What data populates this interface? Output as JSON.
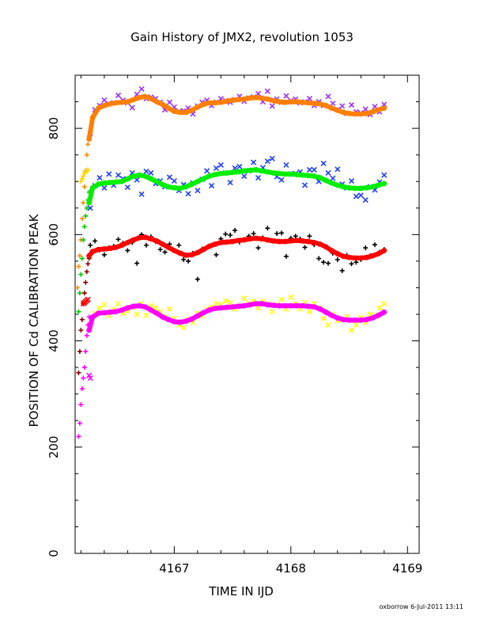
{
  "chart_data": {
    "type": "scatter",
    "title": "Gain History of JMX2, revolution 1053",
    "xlabel": "TIME IN IJD",
    "ylabel": "POSITION OF Cd CALIBRATION PEAK",
    "xlim": [
      4166.15,
      4169.1
    ],
    "ylim": [
      0,
      900
    ],
    "xticks": [
      4167,
      4168,
      4169
    ],
    "xtick_labels": [
      "4167",
      "4168",
      "4169"
    ],
    "yticks": [
      0,
      200,
      400,
      600,
      800
    ],
    "ytick_labels": [
      "0",
      "200",
      "400",
      "600",
      "800"
    ],
    "grid": false,
    "legend": "none",
    "footer": "oxborrow  6-Jul-2011 13:11",
    "series": [
      {
        "marker": "x",
        "color": "#9b30ff",
        "x": [
          4166.28,
          4166.32,
          4166.36,
          4166.4,
          4166.44,
          4166.48,
          4166.52,
          4166.56,
          4166.6,
          4166.64,
          4166.68,
          4166.72,
          4166.76,
          4166.8,
          4166.84,
          4166.88,
          4166.92,
          4166.96,
          4167.0,
          4167.04,
          4167.08,
          4167.12,
          4167.16,
          4167.2,
          4167.24,
          4167.28,
          4167.32,
          4167.36,
          4167.4,
          4167.44,
          4167.48,
          4167.52,
          4167.56,
          4167.6,
          4167.64,
          4167.68,
          4167.72,
          4167.76,
          4167.8,
          4167.84,
          4167.88,
          4167.92,
          4167.96,
          4168.0,
          4168.04,
          4168.08,
          4168.12,
          4168.16,
          4168.2,
          4168.24,
          4168.28,
          4168.32,
          4168.36,
          4168.4,
          4168.44,
          4168.48,
          4168.52,
          4168.56,
          4168.6,
          4168.64,
          4168.68,
          4168.72,
          4168.76,
          4168.8
        ],
        "y": [
          790,
          835,
          843,
          853,
          846,
          848,
          862,
          853,
          848,
          839,
          864,
          874,
          856,
          859,
          856,
          849,
          835,
          849,
          840,
          832,
          833,
          838,
          827,
          842,
          849,
          853,
          843,
          849,
          856,
          852,
          849,
          854,
          860,
          851,
          857,
          859,
          865,
          850,
          870,
          842,
          855,
          849,
          861,
          852,
          855,
          848,
          850,
          856,
          843,
          850,
          843,
          860,
          847,
          835,
          842,
          828,
          844,
          831,
          829,
          836,
          826,
          841,
          831,
          845
        ]
      },
      {
        "marker": "+",
        "color": "#ff8c00",
        "x": [
          4166.17,
          4166.18,
          4166.19,
          4166.2,
          4166.21,
          4166.22,
          4166.23,
          4166.24,
          4166.25,
          4166.26,
          4166.27
        ],
        "y": [
          500,
          540,
          560,
          590,
          630,
          660,
          690,
          720,
          750,
          770,
          785
        ]
      },
      {
        "marker": "x",
        "color": "#1f3fff",
        "x": [
          4166.28,
          4166.32,
          4166.36,
          4166.4,
          4166.44,
          4166.48,
          4166.52,
          4166.56,
          4166.6,
          4166.64,
          4166.68,
          4166.72,
          4166.76,
          4166.8,
          4166.84,
          4166.88,
          4166.92,
          4166.96,
          4167.0,
          4167.04,
          4167.08,
          4167.12,
          4167.16,
          4167.2,
          4167.24,
          4167.28,
          4167.32,
          4167.36,
          4167.4,
          4167.44,
          4167.48,
          4167.52,
          4167.56,
          4167.6,
          4167.64,
          4167.68,
          4167.72,
          4167.76,
          4167.8,
          4167.84,
          4167.88,
          4167.92,
          4167.96,
          4168.0,
          4168.04,
          4168.08,
          4168.12,
          4168.16,
          4168.2,
          4168.24,
          4168.28,
          4168.32,
          4168.36,
          4168.4,
          4168.44,
          4168.48,
          4168.52,
          4168.56,
          4168.6,
          4168.64,
          4168.68,
          4168.72,
          4168.76,
          4168.8
        ],
        "y": [
          650,
          692,
          707,
          688,
          714,
          693,
          712,
          705,
          689,
          716,
          703,
          676,
          719,
          716,
          696,
          701,
          690,
          708,
          701,
          683,
          694,
          677,
          697,
          683,
          704,
          720,
          692,
          725,
          731,
          716,
          698,
          725,
          728,
          710,
          720,
          736,
          707,
          726,
          738,
          743,
          709,
          703,
          731,
          714,
          715,
          718,
          693,
          722,
          722,
          700,
          734,
          716,
          706,
          723,
          695,
          688,
          701,
          672,
          674,
          665,
          690,
          684,
          699,
          712
        ]
      },
      {
        "marker": "+",
        "color": "#ffd700",
        "x": [
          4166.2,
          4166.21,
          4166.22,
          4166.23,
          4166.24,
          4166.25,
          4166.26
        ],
        "y": [
          700,
          705,
          710,
          715,
          718,
          720,
          722
        ]
      },
      {
        "marker": "+",
        "color": "#000000",
        "x": [
          4166.28,
          4166.32,
          4166.36,
          4166.4,
          4166.44,
          4166.48,
          4166.52,
          4166.56,
          4166.6,
          4166.64,
          4166.68,
          4166.72,
          4166.76,
          4166.8,
          4166.84,
          4166.88,
          4166.92,
          4166.96,
          4167.0,
          4167.04,
          4167.08,
          4167.12,
          4167.16,
          4167.2,
          4167.24,
          4167.28,
          4167.32,
          4167.36,
          4167.4,
          4167.44,
          4167.48,
          4167.52,
          4167.56,
          4167.6,
          4167.64,
          4167.68,
          4167.72,
          4167.76,
          4167.8,
          4167.84,
          4167.88,
          4167.92,
          4167.96,
          4168.0,
          4168.04,
          4168.08,
          4168.12,
          4168.16,
          4168.2,
          4168.24,
          4168.28,
          4168.32,
          4168.36,
          4168.4,
          4168.44,
          4168.48,
          4168.52,
          4168.56,
          4168.6,
          4168.64,
          4168.68,
          4168.72,
          4168.76,
          4168.8
        ],
        "y": [
          580,
          588,
          571,
          562,
          575,
          578,
          591,
          584,
          570,
          585,
          546,
          600,
          580,
          596,
          587,
          572,
          567,
          582,
          570,
          580,
          553,
          550,
          565,
          516,
          573,
          576,
          580,
          562,
          592,
          601,
          599,
          608,
          586,
          591,
          597,
          602,
          575,
          594,
          612,
          588,
          602,
          603,
          559,
          593,
          597,
          592,
          576,
          597,
          581,
          555,
          548,
          546,
          565,
          553,
          532,
          561,
          545,
          548,
          553,
          575,
          560,
          581,
          567,
          572
        ]
      },
      {
        "marker": "+",
        "color": "#8b0000",
        "x": [
          4166.18,
          4166.19,
          4166.2,
          4166.21,
          4166.22,
          4166.23,
          4166.24,
          4166.25,
          4166.26,
          4166.27
        ],
        "y": [
          340,
          380,
          420,
          440,
          470,
          490,
          510,
          530,
          545,
          555
        ]
      },
      {
        "marker": "x",
        "color": "#ffff00",
        "x": [
          4166.28,
          4166.32,
          4166.36,
          4166.4,
          4166.44,
          4166.48,
          4166.52,
          4166.56,
          4166.6,
          4166.64,
          4166.68,
          4166.72,
          4166.76,
          4166.8,
          4166.84,
          4166.88,
          4166.92,
          4166.96,
          4167.0,
          4167.04,
          4167.08,
          4167.12,
          4167.16,
          4167.2,
          4167.24,
          4167.28,
          4167.32,
          4167.36,
          4167.4,
          4167.44,
          4167.48,
          4167.52,
          4167.56,
          4167.6,
          4167.64,
          4167.68,
          4167.72,
          4167.76,
          4167.8,
          4167.84,
          4167.88,
          4167.92,
          4167.96,
          4168.0,
          4168.04,
          4168.08,
          4168.12,
          4168.16,
          4168.2,
          4168.24,
          4168.28,
          4168.32,
          4168.36,
          4168.4,
          4168.44,
          4168.48,
          4168.52,
          4168.56,
          4168.6,
          4168.64,
          4168.68,
          4168.72,
          4168.76,
          4168.8
        ],
        "y": [
          430,
          452,
          462,
          468,
          448,
          459,
          470,
          452,
          456,
          463,
          450,
          470,
          448,
          466,
          462,
          455,
          445,
          460,
          442,
          430,
          425,
          440,
          435,
          452,
          447,
          460,
          463,
          470,
          468,
          475,
          472,
          460,
          466,
          480,
          470,
          475,
          462,
          474,
          470,
          455,
          468,
          478,
          460,
          482,
          470,
          460,
          472,
          455,
          470,
          462,
          442,
          430,
          450,
          438,
          440,
          445,
          420,
          430,
          444,
          435,
          450,
          448,
          462,
          470
        ]
      },
      {
        "marker": "+",
        "color": "#ff00ff",
        "x": [
          4166.18,
          4166.19,
          4166.2,
          4166.21,
          4166.22,
          4166.23,
          4166.24,
          4166.25,
          4166.26,
          4166.27
        ],
        "y": [
          220,
          245,
          280,
          310,
          330,
          350,
          380,
          410,
          430,
          445
        ]
      },
      {
        "marker": "+",
        "color": "#00cc00",
        "x": [
          4166.18,
          4166.19,
          4166.2,
          4166.21,
          4166.22,
          4166.23,
          4166.24,
          4166.25,
          4166.26,
          4166.27
        ],
        "y": [
          455,
          490,
          525,
          555,
          590,
          615,
          635,
          650,
          665,
          680
        ]
      },
      {
        "marker": "x",
        "color": "#ff0000",
        "x": [
          4166.22,
          4166.23,
          4166.24,
          4166.25,
          4166.26
        ],
        "y": [
          470,
          472,
          474,
          476,
          478
        ]
      },
      {
        "marker": "x",
        "color": "#ff00ff",
        "x": [
          4166.27,
          4166.28
        ],
        "y": [
          335,
          330
        ]
      },
      {
        "marker": "smooth",
        "color": "#ff7f00",
        "x": [
          4166.27,
          4166.3,
          4166.35,
          4166.4,
          4166.45,
          4166.5,
          4166.55,
          4166.6,
          4166.65,
          4166.7,
          4166.75,
          4166.8,
          4166.85,
          4166.9,
          4166.95,
          4167.0,
          4167.05,
          4167.1,
          4167.15,
          4167.2,
          4167.25,
          4167.3,
          4167.35,
          4167.4,
          4167.45,
          4167.5,
          4167.55,
          4167.6,
          4167.65,
          4167.7,
          4167.75,
          4167.8,
          4167.85,
          4167.9,
          4167.95,
          4168.0,
          4168.05,
          4168.1,
          4168.15,
          4168.2,
          4168.25,
          4168.3,
          4168.35,
          4168.4,
          4168.45,
          4168.5,
          4168.55,
          4168.6,
          4168.65,
          4168.7,
          4168.75,
          4168.8
        ],
        "y": [
          780,
          820,
          838,
          843,
          846,
          848,
          849,
          850,
          854,
          858,
          860,
          856,
          850,
          845,
          838,
          832,
          830,
          830,
          834,
          840,
          845,
          848,
          848,
          849,
          851,
          853,
          854,
          855,
          857,
          858,
          857,
          855,
          852,
          850,
          849,
          850,
          850,
          849,
          848,
          847,
          846,
          843,
          838,
          834,
          830,
          828,
          827,
          827,
          828,
          831,
          835,
          838
        ]
      },
      {
        "marker": "smooth",
        "color": "#00ee00",
        "x": [
          4166.27,
          4166.3,
          4166.35,
          4166.4,
          4166.45,
          4166.5,
          4166.55,
          4166.6,
          4166.65,
          4166.7,
          4166.75,
          4166.8,
          4166.85,
          4166.9,
          4166.95,
          4167.0,
          4167.05,
          4167.1,
          4167.15,
          4167.2,
          4167.25,
          4167.3,
          4167.35,
          4167.4,
          4167.45,
          4167.5,
          4167.55,
          4167.6,
          4167.65,
          4167.7,
          4167.75,
          4167.8,
          4167.85,
          4167.9,
          4167.95,
          4168.0,
          4168.05,
          4168.1,
          4168.15,
          4168.2,
          4168.25,
          4168.3,
          4168.35,
          4168.4,
          4168.45,
          4168.5,
          4168.55,
          4168.6,
          4168.65,
          4168.7,
          4168.75,
          4168.8
        ],
        "y": [
          660,
          688,
          695,
          697,
          698,
          699,
          700,
          705,
          710,
          712,
          710,
          705,
          700,
          694,
          690,
          688,
          687,
          690,
          695,
          700,
          705,
          710,
          713,
          715,
          716,
          717,
          718,
          720,
          721,
          722,
          720,
          718,
          716,
          715,
          714,
          714,
          713,
          712,
          711,
          710,
          707,
          702,
          697,
          693,
          690,
          688,
          687,
          687,
          688,
          690,
          693,
          696
        ]
      },
      {
        "marker": "smooth",
        "color": "#ff0000",
        "x": [
          4166.27,
          4166.3,
          4166.35,
          4166.4,
          4166.45,
          4166.5,
          4166.55,
          4166.6,
          4166.65,
          4166.7,
          4166.75,
          4166.8,
          4166.85,
          4166.9,
          4166.95,
          4167.0,
          4167.05,
          4167.1,
          4167.15,
          4167.2,
          4167.25,
          4167.3,
          4167.35,
          4167.4,
          4167.45,
          4167.5,
          4167.55,
          4167.6,
          4167.65,
          4167.7,
          4167.75,
          4167.8,
          4167.85,
          4167.9,
          4167.95,
          4168.0,
          4168.05,
          4168.1,
          4168.15,
          4168.2,
          4168.25,
          4168.3,
          4168.35,
          4168.4,
          4168.45,
          4168.5,
          4168.55,
          4168.6,
          4168.65,
          4168.7,
          4168.75,
          4168.8
        ],
        "y": [
          560,
          568,
          572,
          573,
          574,
          576,
          580,
          585,
          590,
          594,
          595,
          592,
          588,
          582,
          576,
          570,
          565,
          561,
          562,
          566,
          572,
          578,
          582,
          585,
          586,
          587,
          589,
          590,
          592,
          593,
          592,
          590,
          588,
          587,
          587,
          588,
          589,
          588,
          587,
          585,
          582,
          577,
          570,
          564,
          559,
          557,
          556,
          556,
          557,
          560,
          564,
          570
        ]
      },
      {
        "marker": "smooth",
        "color": "#ff00ff",
        "x": [
          4166.27,
          4166.3,
          4166.35,
          4166.4,
          4166.45,
          4166.5,
          4166.55,
          4166.6,
          4166.65,
          4166.7,
          4166.75,
          4166.8,
          4166.85,
          4166.9,
          4166.95,
          4167.0,
          4167.05,
          4167.1,
          4167.15,
          4167.2,
          4167.25,
          4167.3,
          4167.35,
          4167.4,
          4167.45,
          4167.5,
          4167.55,
          4167.6,
          4167.65,
          4167.7,
          4167.75,
          4167.8,
          4167.85,
          4167.9,
          4167.95,
          4168.0,
          4168.05,
          4168.1,
          4168.15,
          4168.2,
          4168.25,
          4168.3,
          4168.35,
          4168.4,
          4168.45,
          4168.5,
          4168.55,
          4168.6,
          4168.65,
          4168.7,
          4168.75,
          4168.8
        ],
        "y": [
          420,
          445,
          452,
          453,
          454,
          455,
          458,
          462,
          465,
          466,
          464,
          458,
          452,
          445,
          440,
          436,
          435,
          437,
          441,
          447,
          453,
          458,
          461,
          462,
          463,
          464,
          465,
          466,
          468,
          470,
          470,
          468,
          467,
          466,
          466,
          466,
          466,
          466,
          465,
          464,
          460,
          454,
          448,
          443,
          440,
          439,
          439,
          439,
          440,
          443,
          448,
          454
        ]
      }
    ]
  }
}
